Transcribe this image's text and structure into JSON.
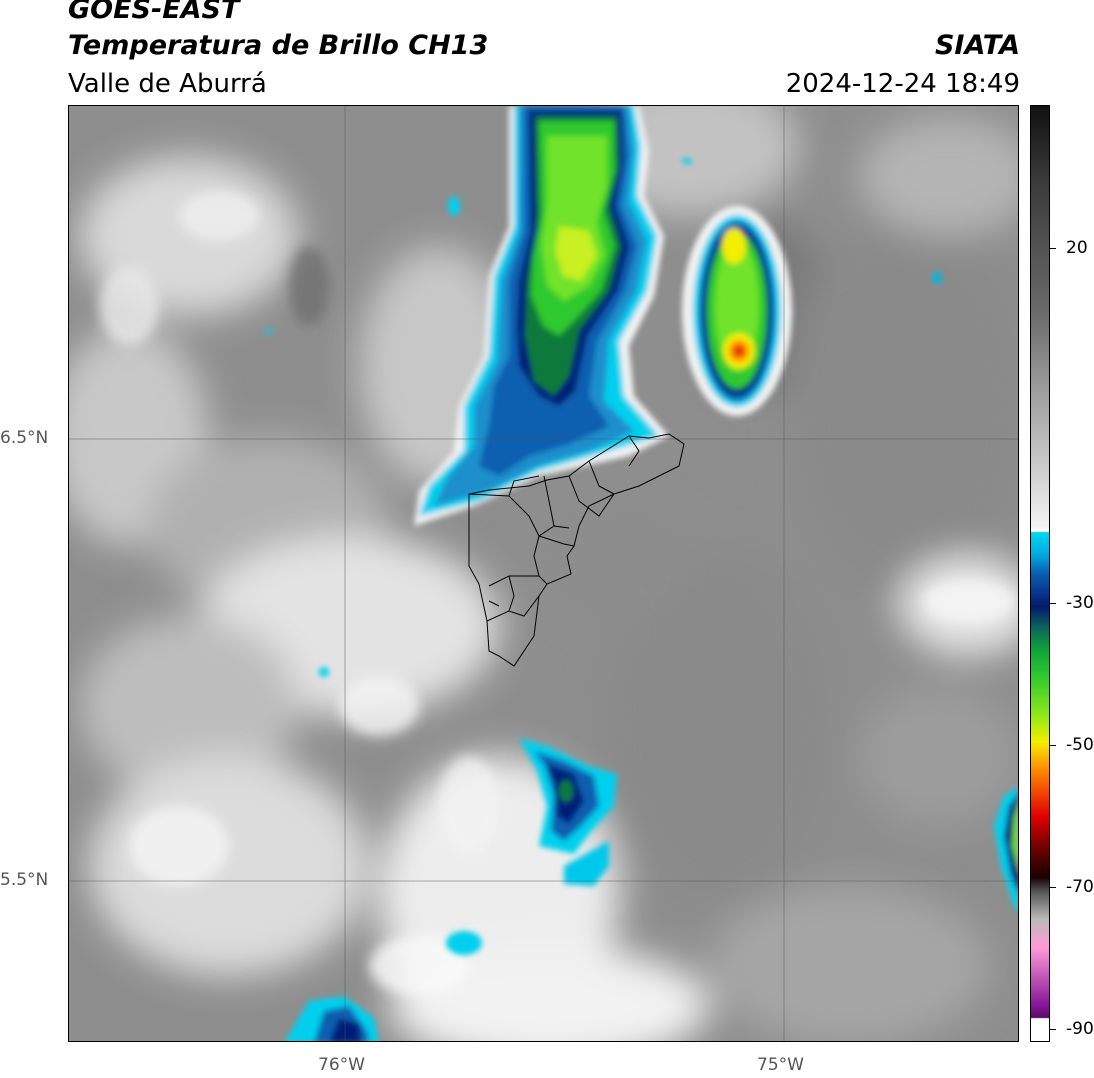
{
  "header": {
    "satellite": "GOES-EAST",
    "product": "Temperatura de Brillo CH13",
    "region": "Valle de Aburrá",
    "agency": "SIATA",
    "datetime": "2024-12-24 18:49"
  },
  "map": {
    "lat_labels": [
      "6.5°N",
      "5.5°N"
    ],
    "lon_labels": [
      "76°W",
      "75°W"
    ],
    "gridlines": true
  },
  "colorbar": {
    "unit_note": "",
    "ticks": [
      "20",
      "-30",
      "-50",
      "-70",
      "-90"
    ],
    "colors": {
      "warm_top": "#111111",
      "gray_mid": "#9a9a9a",
      "white": "#f4f4f4",
      "cyan": "#00d8f0",
      "blue": "#0a5fb0",
      "navy": "#041a6e",
      "green": "#2fc92f",
      "yellow": "#f4ee00",
      "orange": "#ff8a00",
      "red": "#e00000",
      "dark": "#1a0000",
      "pink": "#ff9ad8",
      "purple": "#8a1a9a"
    }
  }
}
